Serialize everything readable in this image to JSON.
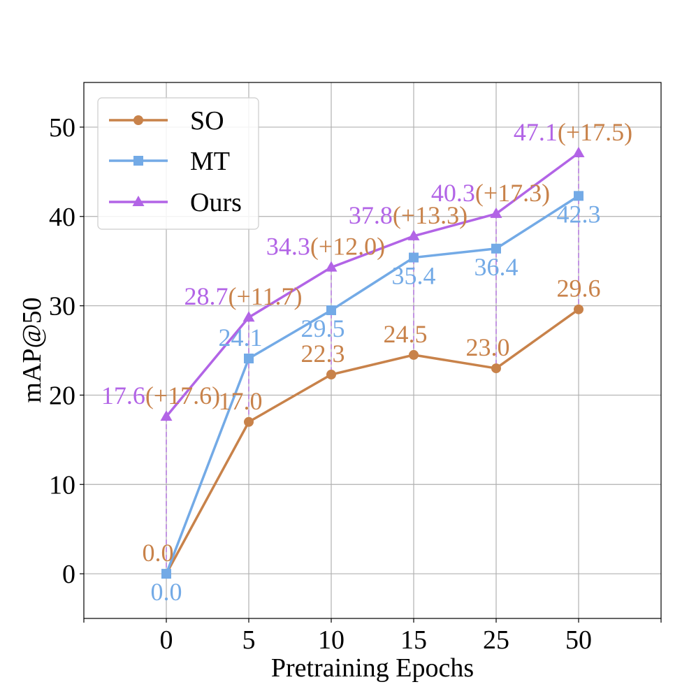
{
  "chart_data": {
    "type": "line",
    "title": "",
    "xlabel": "Pretraining Epochs",
    "ylabel": "mAP@50",
    "categories": [
      "0",
      "5",
      "10",
      "15",
      "25",
      "50"
    ],
    "ylim": [
      -5,
      55
    ],
    "yticks": [
      0,
      10,
      20,
      30,
      40,
      50
    ],
    "grid": true,
    "legend_position": "top-left",
    "series": [
      {
        "name": "SO",
        "color": "#c8824a",
        "marker": "circle",
        "values": [
          0.0,
          17.0,
          22.3,
          24.5,
          23.0,
          29.6
        ],
        "labels": [
          "0.0",
          "17.0",
          "22.3",
          "24.5",
          "23.0",
          "29.6"
        ]
      },
      {
        "name": "MT",
        "color": "#73aae6",
        "marker": "square",
        "values": [
          0.0,
          24.1,
          29.5,
          35.4,
          36.4,
          42.3
        ],
        "labels": [
          "0.0",
          "24.1",
          "29.5",
          "35.4",
          "36.4",
          "42.3"
        ]
      },
      {
        "name": "Ours",
        "color": "#b264e6",
        "marker": "triangle",
        "values": [
          17.6,
          28.7,
          34.3,
          37.8,
          40.3,
          47.1
        ],
        "labels": [
          "17.6",
          "28.7",
          "34.3",
          "37.8",
          "40.3",
          "47.1"
        ],
        "gains": [
          "(+17.6)",
          "(+11.7)",
          "(+12.0)",
          "(+13.3)",
          "(+17.3)",
          "(+17.5)"
        ]
      }
    ],
    "gain_color": "#c8824a",
    "drop_line_color": "#b264e6"
  }
}
